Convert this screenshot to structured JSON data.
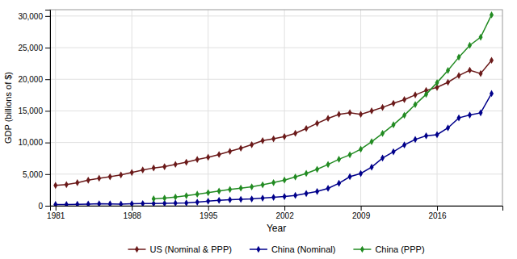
{
  "chart_data": {
    "type": "line",
    "xlabel": "Year",
    "ylabel": "GDP (billions of $)",
    "xlim": [
      1980.5,
      2022
    ],
    "ylim": [
      0,
      31000
    ],
    "xticks": [
      1981,
      1988,
      1995,
      2002,
      2009,
      2016
    ],
    "yticks": [
      0,
      {
        "value": 5000,
        "label": "5,000"
      },
      {
        "value": 10000,
        "label": "10,000"
      },
      {
        "value": 15000,
        "label": "15,000"
      },
      {
        "value": 20000,
        "label": "20,000"
      },
      {
        "value": 25000,
        "label": "25,000"
      },
      {
        "value": 30000,
        "label": "30,000"
      }
    ],
    "grid": true,
    "legend": "bottom",
    "marker": "diamond",
    "series": [
      {
        "name": "US (Nominal & PPP)",
        "color": "#6b1a1a",
        "x": [
          1981,
          1982,
          1983,
          1984,
          1985,
          1986,
          1987,
          1988,
          1989,
          1990,
          1991,
          1992,
          1993,
          1994,
          1995,
          1996,
          1997,
          1998,
          1999,
          2000,
          2001,
          2002,
          2003,
          2004,
          2005,
          2006,
          2007,
          2008,
          2009,
          2010,
          2011,
          2012,
          2013,
          2014,
          2015,
          2016,
          2017,
          2018,
          2019,
          2020,
          2021
        ],
        "values": [
          3211,
          3345,
          3638,
          4041,
          4347,
          4590,
          4870,
          5253,
          5658,
          5979,
          6174,
          6539,
          6879,
          7309,
          7664,
          8100,
          8609,
          9089,
          9661,
          10290,
          10581,
          10936,
          11458,
          12214,
          13037,
          13815,
          14452,
          14713,
          14449,
          14992,
          15543,
          16197,
          16785,
          17527,
          18225,
          18715,
          19519,
          20580,
          21433,
          20893,
          22996
        ]
      },
      {
        "name": "China (Nominal)",
        "color": "#00008b",
        "x": [
          1981,
          1982,
          1983,
          1984,
          1985,
          1986,
          1987,
          1988,
          1989,
          1990,
          1991,
          1992,
          1993,
          1994,
          1995,
          1996,
          1997,
          1998,
          1999,
          2000,
          2001,
          2002,
          2003,
          2004,
          2005,
          2006,
          2007,
          2008,
          2009,
          2010,
          2011,
          2012,
          2013,
          2014,
          2015,
          2016,
          2017,
          2018,
          2019,
          2020,
          2021
        ],
        "values": [
          196,
          203,
          228,
          257,
          309,
          296,
          270,
          305,
          344,
          360,
          379,
          424,
          440,
          559,
          728,
          856,
          952,
          1019,
          1083,
          1198,
          1325,
          1454,
          1641,
          1931,
          2257,
          2752,
          3550,
          4594,
          5101,
          6101,
          7551,
          8532,
          9607,
          10480,
          11065,
          11232,
          12310,
          13894,
          14343,
          14688,
          17734
        ]
      },
      {
        "name": "China (PPP)",
        "color": "#228B22",
        "x": [
          1990,
          1991,
          1992,
          1993,
          1994,
          1995,
          1996,
          1997,
          1998,
          1999,
          2000,
          2001,
          2002,
          2003,
          2004,
          2005,
          2006,
          2007,
          2008,
          2009,
          2010,
          2011,
          2012,
          2013,
          2014,
          2015,
          2016,
          2017,
          2018,
          2019,
          2020,
          2021
        ],
        "values": [
          1100,
          1200,
          1380,
          1590,
          1830,
          2060,
          2320,
          2580,
          2780,
          2990,
          3310,
          3660,
          4060,
          4550,
          5110,
          5770,
          6530,
          7350,
          8060,
          8940,
          10130,
          11440,
          12800,
          14300,
          16000,
          17620,
          19470,
          21390,
          23490,
          25360,
          26660,
          30180
        ]
      }
    ]
  }
}
